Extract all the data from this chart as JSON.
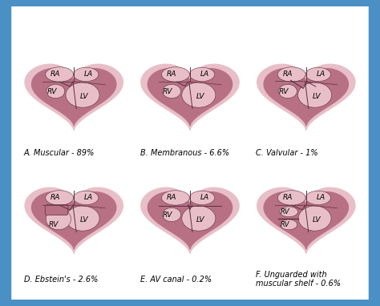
{
  "background": "#4A90C4",
  "panel_bg": "#f5d8e0",
  "outer_pink": "#e8bfc8",
  "inner_dark": "#b87085",
  "chamber_fill": "#c4778a",
  "sep_color": "#5a3040",
  "labels": [
    "A. Muscular - 89%",
    "B. Membranous - 6.6%",
    "C. Valvular - 1%",
    "D. Ebstein's - 2.6%",
    "E. AV canal - 0.2%",
    "F. Unguarded with\nmuscular shelf - 0.6%"
  ],
  "label_fontsize": 7.0,
  "chamber_fontsize": 6.5
}
